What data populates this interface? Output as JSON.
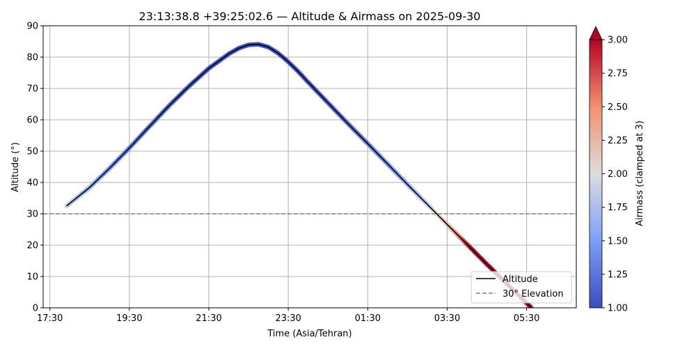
{
  "chart_data": {
    "type": "line",
    "title": "23:13:38.8 +39:25:02.6 — Altitude & Airmass on 2025-09-30",
    "xlabel": "Time (Asia/Tehran)",
    "ylabel": "Altitude (°)",
    "x_ticks": [
      "17:30",
      "19:30",
      "21:30",
      "23:30",
      "01:30",
      "03:30",
      "05:30"
    ],
    "x_tick_hours": [
      17.5,
      19.5,
      21.5,
      23.5,
      25.5,
      27.5,
      29.5
    ],
    "xlim_hours": [
      17.33,
      30.75
    ],
    "ylim": [
      0,
      90
    ],
    "y_ticks": [
      0,
      10,
      20,
      30,
      40,
      50,
      60,
      70,
      80,
      90
    ],
    "grid": true,
    "series": [
      {
        "name": "Altitude",
        "color": "#000000",
        "x_hours": [
          17.92,
          18.5,
          19.0,
          19.5,
          20.0,
          20.5,
          21.0,
          21.5,
          22.0,
          22.25,
          22.5,
          22.75,
          23.0,
          23.25,
          23.5,
          23.75,
          24.0,
          24.5,
          25.0,
          25.5,
          26.0,
          26.5,
          27.0,
          27.5,
          28.0,
          28.5,
          29.0,
          29.5,
          30.0,
          30.17
        ],
        "values": [
          32.5,
          38.4,
          44.5,
          51.0,
          57.8,
          64.5,
          70.7,
          76.4,
          81.0,
          82.8,
          83.9,
          84.1,
          83.2,
          81.2,
          78.5,
          75.4,
          72.0,
          65.4,
          58.8,
          52.4,
          45.9,
          39.4,
          33.0,
          26.6,
          20.3,
          13.9,
          7.7,
          1.5,
          -4.6,
          -6.6
        ]
      },
      {
        "name": "30° Elevation",
        "color": "#808080",
        "style": "dashed",
        "values": [
          30
        ]
      }
    ],
    "airmass_colorbar": {
      "label": "Airmass (clamped at 3)",
      "range": [
        1.0,
        3.0
      ],
      "ticks": [
        "1.00",
        "1.25",
        "1.50",
        "1.75",
        "2.00",
        "2.25",
        "2.50",
        "2.75",
        "3.00"
      ],
      "extend": "max",
      "colormap": "coolwarm"
    },
    "legend": {
      "placement": "bottom-right",
      "entries": [
        "Altitude",
        "30° Elevation"
      ]
    }
  }
}
